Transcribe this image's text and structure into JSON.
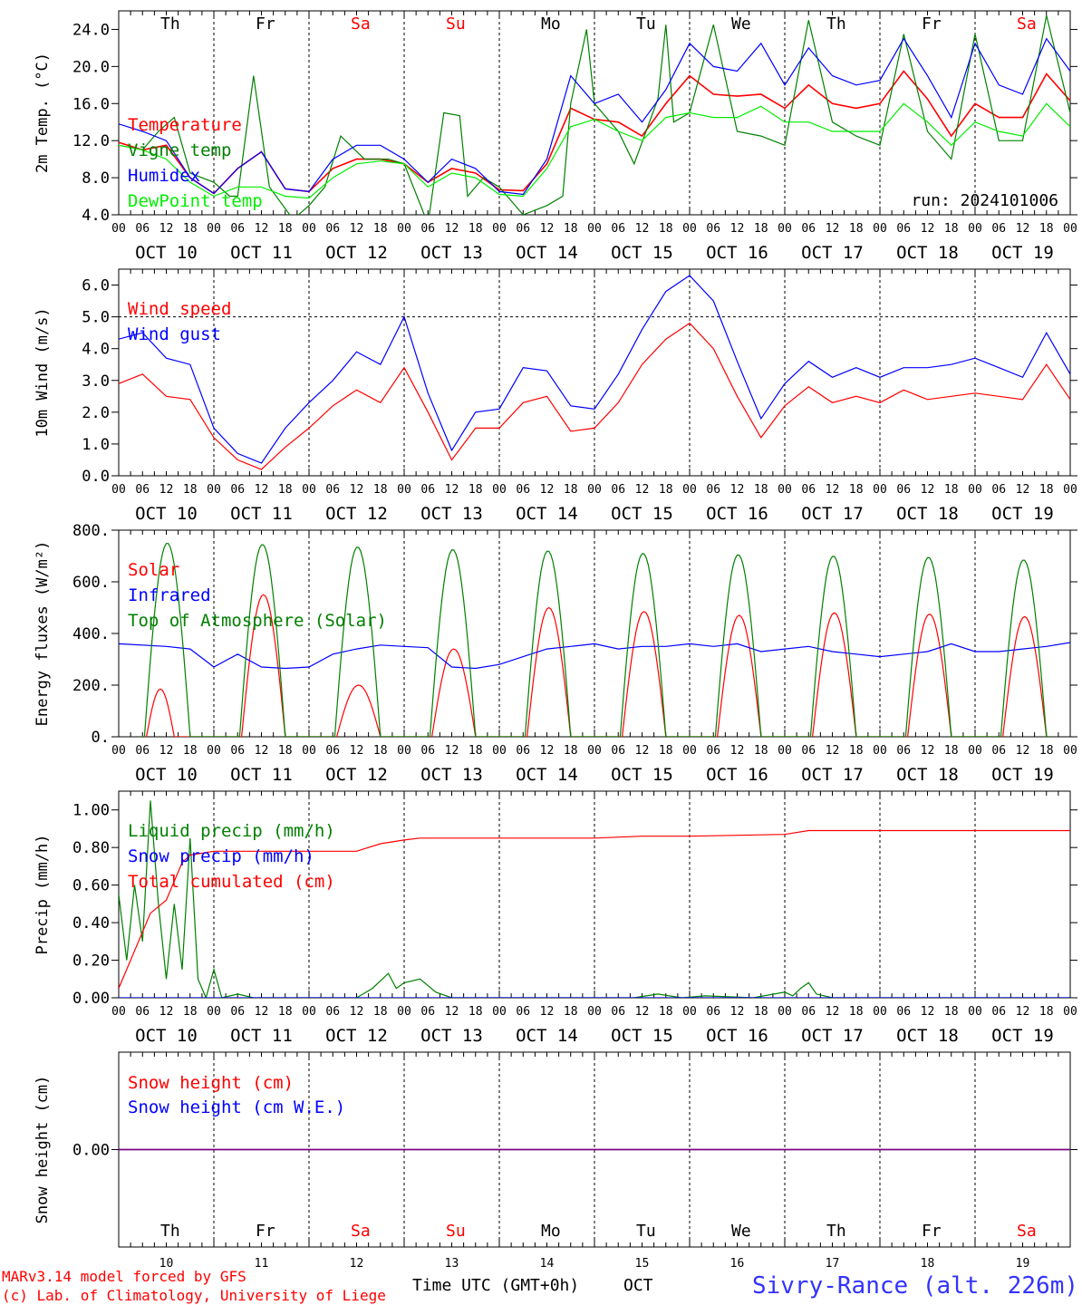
{
  "days": {
    "dates": [
      "OCT 10",
      "OCT 11",
      "OCT 12",
      "OCT 13",
      "OCT 14",
      "OCT 15",
      "OCT 16",
      "OCT 17",
      "OCT 18",
      "OCT 19"
    ],
    "weekdays": [
      "Th",
      "Fr",
      "Sa",
      "Su",
      "Mo",
      "Tu",
      "We",
      "Th",
      "Fr",
      "Sa"
    ],
    "weekend_flags": [
      false,
      false,
      true,
      true,
      false,
      false,
      false,
      false,
      false,
      true
    ],
    "day_numbers": [
      "10",
      "11",
      "12",
      "13",
      "14",
      "15",
      "16",
      "17",
      "18",
      "19"
    ],
    "hour_ticks": [
      "00",
      "06",
      "12",
      "18"
    ],
    "final_tick": "00"
  },
  "colors": {
    "red": "#ff0000",
    "darkgreen": "#008000",
    "blue": "#0000ff",
    "lightgreen": "#00ee00",
    "purple": "#7f007f",
    "weekday": "#000000",
    "weekend": "#ff0000"
  },
  "footer": {
    "model": "MARv3.14 model forced by GFS",
    "credit": "(c) Lab. of Climatology, University of Liege",
    "xaxis": "Time UTC (GMT+0h)",
    "month": "OCT",
    "station": "Sivry-Rance (alt. 226m)"
  },
  "chart_data": [
    {
      "type": "line",
      "ylabel": "2m Temp. (°C)",
      "ylim": [
        4,
        26
      ],
      "yticks": [
        4,
        8,
        12,
        16,
        20,
        24
      ],
      "ytick_labels": [
        "4.0",
        "8.0",
        "12.0",
        "16.0",
        "20.0",
        "24.0"
      ],
      "annotation": "run: 2024101006",
      "x_unit": "hours since OCT 10 00 UTC",
      "series": [
        {
          "name": "Temperature",
          "color": "red",
          "x": [
            0,
            6,
            12,
            18,
            24,
            30,
            36,
            42,
            48,
            54,
            60,
            66,
            72,
            78,
            84,
            90,
            96,
            102,
            108,
            114,
            120,
            126,
            132,
            138,
            144,
            150,
            156,
            162,
            168,
            174,
            180,
            186,
            192,
            198,
            204,
            210,
            216,
            222,
            228,
            234,
            240
          ],
          "y": [
            11.8,
            11,
            11.5,
            8,
            6.3,
            9,
            10.8,
            6.8,
            6.5,
            9,
            10,
            10,
            9.5,
            7.5,
            9,
            8.5,
            6.7,
            6.6,
            9.5,
            15.5,
            14.3,
            14,
            12.5,
            16,
            19,
            17,
            16.8,
            17,
            15.5,
            18,
            16,
            15.5,
            16,
            19.5,
            16.5,
            12.5,
            16,
            14.5,
            14.5,
            19.2,
            16.3
          ]
        },
        {
          "name": "Vigne temp",
          "color": "darkgreen",
          "x": [
            0,
            6,
            10,
            14,
            18,
            24,
            28,
            30,
            34,
            38,
            44,
            48,
            52,
            56,
            62,
            68,
            72,
            78,
            82,
            86,
            88,
            92,
            96,
            102,
            108,
            112,
            114,
            118,
            120,
            126,
            130,
            136,
            138,
            140,
            144,
            150,
            156,
            162,
            168,
            174,
            180,
            186,
            192,
            198,
            204,
            210,
            216,
            222,
            228,
            234,
            240
          ],
          "y": [
            11.5,
            11,
            13,
            14.5,
            8.5,
            7.5,
            6,
            6,
            19,
            7,
            3.5,
            5,
            7,
            12.5,
            10,
            10,
            9.5,
            3,
            15,
            14.7,
            6,
            8,
            7,
            4,
            5,
            6,
            16,
            24,
            16,
            13,
            9.5,
            16.5,
            24.5,
            14,
            15,
            24.5,
            13,
            12.5,
            11.5,
            25,
            14,
            12.5,
            11.5,
            23.5,
            13,
            10,
            23.5,
            12,
            12,
            25.5,
            15
          ]
        },
        {
          "name": "Humidex",
          "color": "blue",
          "x": [
            0,
            6,
            12,
            18,
            24,
            30,
            36,
            42,
            48,
            54,
            60,
            66,
            72,
            78,
            84,
            90,
            96,
            102,
            108,
            114,
            120,
            126,
            132,
            138,
            144,
            150,
            156,
            162,
            168,
            174,
            180,
            186,
            192,
            198,
            204,
            210,
            216,
            222,
            228,
            234,
            240
          ],
          "y": [
            13.8,
            13,
            12,
            8,
            6.3,
            9,
            10.8,
            6.8,
            6.5,
            10,
            11.5,
            11.5,
            10,
            7.5,
            10,
            9,
            6.5,
            6.2,
            10,
            19,
            16,
            17,
            14,
            17.5,
            22.5,
            20,
            19.5,
            22.5,
            18,
            22,
            19,
            18,
            18.5,
            23,
            19,
            14.5,
            22.5,
            18,
            17,
            23,
            19.5
          ]
        },
        {
          "name": "DewPoint temp",
          "color": "lightgreen",
          "x": [
            0,
            6,
            12,
            18,
            24,
            30,
            36,
            42,
            48,
            54,
            60,
            66,
            72,
            78,
            84,
            90,
            96,
            102,
            108,
            114,
            120,
            126,
            132,
            138,
            144,
            150,
            156,
            162,
            168,
            174,
            180,
            186,
            192,
            198,
            204,
            210,
            216,
            222,
            228,
            234,
            240
          ],
          "y": [
            11.5,
            11,
            10,
            7.5,
            6,
            7,
            7,
            6,
            5.8,
            8,
            9.5,
            9.8,
            9.5,
            7,
            8.5,
            8,
            6.2,
            6,
            9,
            13.5,
            14.3,
            13,
            12,
            14.5,
            15,
            14.5,
            14.5,
            15.7,
            14,
            14,
            13,
            13,
            13,
            16,
            14,
            11.5,
            14,
            13,
            12.5,
            16,
            13.5
          ]
        }
      ]
    },
    {
      "type": "line",
      "ylabel": "10m Wind (m/s)",
      "ylim": [
        0,
        6.5
      ],
      "yticks": [
        0,
        1,
        2,
        3,
        4,
        5,
        6
      ],
      "ytick_labels": [
        "0.0",
        "1.0",
        "2.0",
        "3.0",
        "4.0",
        "5.0",
        "6.0"
      ],
      "reference_line": 5.0,
      "x_unit": "hours since OCT 10 00 UTC",
      "series": [
        {
          "name": "Wind speed",
          "color": "red",
          "x": [
            0,
            6,
            12,
            18,
            24,
            30,
            36,
            42,
            48,
            54,
            60,
            66,
            72,
            78,
            84,
            90,
            96,
            102,
            108,
            114,
            120,
            126,
            132,
            138,
            144,
            150,
            156,
            162,
            168,
            174,
            180,
            186,
            192,
            198,
            204,
            210,
            216,
            222,
            228,
            234,
            240
          ],
          "y": [
            2.9,
            3.2,
            2.5,
            2.4,
            1.2,
            0.5,
            0.2,
            0.9,
            1.5,
            2.2,
            2.7,
            2.3,
            3.4,
            2,
            0.5,
            1.5,
            1.5,
            2.3,
            2.5,
            1.4,
            1.5,
            2.3,
            3.5,
            4.3,
            4.8,
            4,
            2.5,
            1.2,
            2.2,
            2.8,
            2.3,
            2.5,
            2.3,
            2.7,
            2.4,
            2.5,
            2.6,
            2.5,
            2.4,
            3.5,
            2.4
          ]
        },
        {
          "name": "Wind gust",
          "color": "blue",
          "x": [
            0,
            6,
            12,
            18,
            24,
            30,
            36,
            42,
            48,
            54,
            60,
            66,
            72,
            78,
            84,
            90,
            96,
            102,
            108,
            114,
            120,
            126,
            132,
            138,
            144,
            150,
            156,
            162,
            168,
            174,
            180,
            186,
            192,
            198,
            204,
            210,
            216,
            222,
            228,
            234,
            240
          ],
          "y": [
            4.3,
            4.5,
            3.7,
            3.5,
            1.5,
            0.7,
            0.4,
            1.5,
            2.3,
            3,
            3.9,
            3.5,
            5,
            2.6,
            0.8,
            2,
            2.1,
            3.4,
            3.3,
            2.2,
            2.1,
            3.2,
            4.6,
            5.8,
            6.3,
            5.5,
            3.6,
            1.8,
            2.9,
            3.6,
            3.1,
            3.4,
            3.1,
            3.4,
            3.4,
            3.5,
            3.7,
            3.4,
            3.1,
            4.5,
            3.2
          ]
        }
      ]
    },
    {
      "type": "line",
      "ylabel": "Energy fluxes (W/m²)",
      "ylim": [
        0,
        800
      ],
      "yticks": [
        0,
        200,
        400,
        600,
        800
      ],
      "ytick_labels": [
        "0.",
        "200.",
        "400.",
        "600.",
        "800."
      ],
      "x_unit": "hours since OCT 10 00 UTC",
      "series": [
        {
          "name": "Solar",
          "color": "red",
          "daily_peaks_x": [
            10,
            12,
            12,
            11,
            12,
            11,
            12,
            12,
            12,
            12
          ],
          "daily_peaks_y": [
            185,
            550,
            200,
            340,
            500,
            485,
            470,
            480,
            475,
            465
          ],
          "note": "daylight approx 07-18 UTC, zero at night"
        },
        {
          "name": "Infrared",
          "color": "blue",
          "x": [
            0,
            12,
            18,
            24,
            30,
            36,
            42,
            48,
            54,
            60,
            66,
            72,
            78,
            84,
            90,
            96,
            102,
            108,
            114,
            120,
            126,
            132,
            138,
            144,
            150,
            156,
            162,
            168,
            174,
            180,
            186,
            192,
            198,
            204,
            210,
            216,
            222,
            228,
            234,
            240
          ],
          "y": [
            360,
            350,
            340,
            270,
            320,
            270,
            265,
            270,
            320,
            340,
            355,
            350,
            345,
            270,
            265,
            280,
            310,
            340,
            350,
            360,
            340,
            350,
            350,
            360,
            350,
            360,
            330,
            340,
            350,
            330,
            320,
            310,
            320,
            330,
            360,
            330,
            330,
            340,
            350,
            365
          ]
        },
        {
          "name": "Top of Atmosphere (Solar)",
          "color": "darkgreen",
          "daily_peaks_x": [
            12,
            12,
            12,
            12,
            12,
            12,
            12,
            12,
            12,
            12
          ],
          "daily_peaks_y": [
            750,
            745,
            735,
            725,
            720,
            710,
            705,
            700,
            695,
            685
          ],
          "note": "daylight approx 06.5-18 UTC"
        }
      ]
    },
    {
      "type": "line",
      "ylabel": "Precip (mm/h)",
      "ylim": [
        0,
        1.1
      ],
      "yticks": [
        0,
        0.2,
        0.4,
        0.6,
        0.8,
        1.0
      ],
      "ytick_labels": [
        "0.00",
        "0.20",
        "0.40",
        "0.60",
        "0.80",
        "1.00"
      ],
      "x_unit": "hours since OCT 10 00 UTC",
      "series": [
        {
          "name": "Liquid precip (mm/h)",
          "color": "darkgreen",
          "x": [
            0,
            2,
            4,
            6,
            8,
            10,
            12,
            14,
            16,
            18,
            20,
            22,
            24,
            26,
            30,
            34,
            36,
            40,
            60,
            64,
            68,
            70,
            72,
            76,
            80,
            84,
            90,
            100,
            130,
            136,
            142,
            148,
            160,
            168,
            170,
            172,
            174,
            176,
            180,
            240
          ],
          "y": [
            0.55,
            0.2,
            0.6,
            0.3,
            1.05,
            0.5,
            0.1,
            0.5,
            0.15,
            0.85,
            0.1,
            0,
            0.15,
            0,
            0.02,
            0,
            0,
            0,
            0,
            0.05,
            0.13,
            0.05,
            0.08,
            0.1,
            0.03,
            0,
            0,
            0,
            0,
            0.02,
            0,
            0.01,
            0,
            0.03,
            0.01,
            0.05,
            0.08,
            0.02,
            0,
            0
          ]
        },
        {
          "name": "Snow precip (mm/h)",
          "color": "blue",
          "x": [
            0,
            240
          ],
          "y": [
            0,
            0
          ]
        },
        {
          "name": "Total cumulated (cm)",
          "color": "red",
          "x": [
            0,
            4,
            8,
            12,
            16,
            18,
            24,
            36,
            48,
            60,
            66,
            72,
            76,
            96,
            120,
            132,
            144,
            168,
            174,
            240
          ],
          "y": [
            0.05,
            0.25,
            0.45,
            0.52,
            0.72,
            0.76,
            0.78,
            0.78,
            0.78,
            0.78,
            0.82,
            0.84,
            0.85,
            0.85,
            0.85,
            0.86,
            0.86,
            0.87,
            0.89,
            0.89
          ]
        }
      ]
    },
    {
      "type": "line",
      "ylabel": "Snow height (cm)",
      "ylim": [
        -1,
        1
      ],
      "yticks": [
        0
      ],
      "ytick_labels": [
        "0.00"
      ],
      "x_unit": "hours since OCT 10 00 UTC",
      "series": [
        {
          "name": "Snow height (cm)",
          "color": "red",
          "x": [
            0,
            240
          ],
          "y": [
            0,
            0
          ]
        },
        {
          "name": "Snow height (cm W.E.)",
          "color": "blue",
          "x": [
            0,
            240
          ],
          "y": [
            0,
            0
          ]
        }
      ]
    }
  ]
}
